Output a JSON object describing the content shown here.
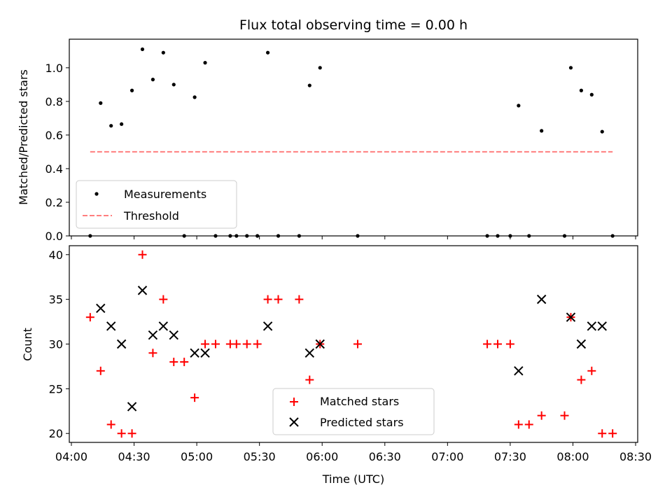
{
  "chart_data": [
    {
      "type": "scatter",
      "title": "Flux total observing time = 0.00 h",
      "ylabel": "Matched/Predicted stars",
      "ylim": [
        0,
        1.17
      ],
      "yticks": [
        "0.0",
        "0.2",
        "0.4",
        "0.6",
        "0.8",
        "1.0"
      ],
      "legend_position": "lower-left",
      "legend": [
        "Measurements",
        "Threshold"
      ],
      "threshold": {
        "name": "Threshold",
        "value": 0.5,
        "x_start": "04:09",
        "x_end": "08:19",
        "color": "#ff7f7f"
      },
      "series": [
        {
          "name": "Measurements",
          "color": "#000000",
          "marker": "dot",
          "x": [
            "04:09",
            "04:14",
            "04:19",
            "04:24",
            "04:29",
            "04:34",
            "04:39",
            "04:44",
            "04:49",
            "04:54",
            "04:59",
            "05:04",
            "05:09",
            "05:16",
            "05:19",
            "05:24",
            "05:29",
            "05:34",
            "05:39",
            "05:49",
            "05:54",
            "05:59",
            "06:17",
            "07:19",
            "07:24",
            "07:30",
            "07:34",
            "07:39",
            "07:45",
            "07:56",
            "07:59",
            "08:04",
            "08:09",
            "08:14",
            "08:19"
          ],
          "y": [
            0.0,
            0.79,
            0.655,
            0.665,
            0.865,
            1.11,
            0.93,
            1.09,
            0.9,
            0.0,
            0.825,
            1.03,
            0.0,
            0.0,
            0.0,
            0.0,
            0.0,
            1.09,
            0.0,
            0.0,
            0.895,
            1.0,
            0.0,
            0.0,
            0.0,
            0.0,
            0.775,
            0.0,
            0.625,
            0.0,
            1.0,
            0.865,
            0.84,
            0.62,
            0.0
          ]
        }
      ]
    },
    {
      "type": "scatter",
      "xlabel": "Time (UTC)",
      "ylabel": "Count",
      "xlim": [
        "03:59",
        "08:31"
      ],
      "ylim": [
        19,
        41
      ],
      "xticks": [
        "04:00",
        "04:30",
        "05:00",
        "05:30",
        "06:00",
        "06:30",
        "07:00",
        "07:30",
        "08:00",
        "08:30"
      ],
      "yticks": [
        "20",
        "25",
        "30",
        "35",
        "40"
      ],
      "legend_position": "lower-center",
      "legend": [
        "Matched stars",
        "Predicted stars"
      ],
      "series": [
        {
          "name": "Matched stars",
          "color": "#ff0000",
          "marker": "plus",
          "x": [
            "04:09",
            "04:14",
            "04:19",
            "04:24",
            "04:29",
            "04:34",
            "04:39",
            "04:44",
            "04:49",
            "04:54",
            "04:59",
            "05:04",
            "05:09",
            "05:16",
            "05:19",
            "05:24",
            "05:29",
            "05:34",
            "05:39",
            "05:49",
            "05:54",
            "05:59",
            "06:17",
            "07:19",
            "07:24",
            "07:30",
            "07:34",
            "07:39",
            "07:45",
            "07:56",
            "07:59",
            "08:04",
            "08:09",
            "08:14",
            "08:19"
          ],
          "y": [
            33,
            27,
            21,
            20,
            20,
            40,
            29,
            35,
            28,
            28,
            24,
            30,
            30,
            30,
            30,
            30,
            30,
            35,
            35,
            35,
            26,
            30,
            30,
            30,
            30,
            30,
            21,
            21,
            22,
            22,
            33,
            26,
            27,
            20,
            20
          ]
        },
        {
          "name": "Predicted stars",
          "color": "#000000",
          "marker": "x",
          "x": [
            "04:14",
            "04:19",
            "04:24",
            "04:29",
            "04:34",
            "04:39",
            "04:44",
            "04:49",
            "04:59",
            "05:04",
            "05:34",
            "05:54",
            "05:59",
            "07:34",
            "07:45",
            "07:59",
            "08:04",
            "08:09",
            "08:14"
          ],
          "y": [
            34,
            32,
            30,
            23,
            36,
            31,
            32,
            31,
            29,
            29,
            32,
            29,
            30,
            27,
            35,
            33,
            30,
            32,
            32
          ]
        }
      ]
    }
  ]
}
